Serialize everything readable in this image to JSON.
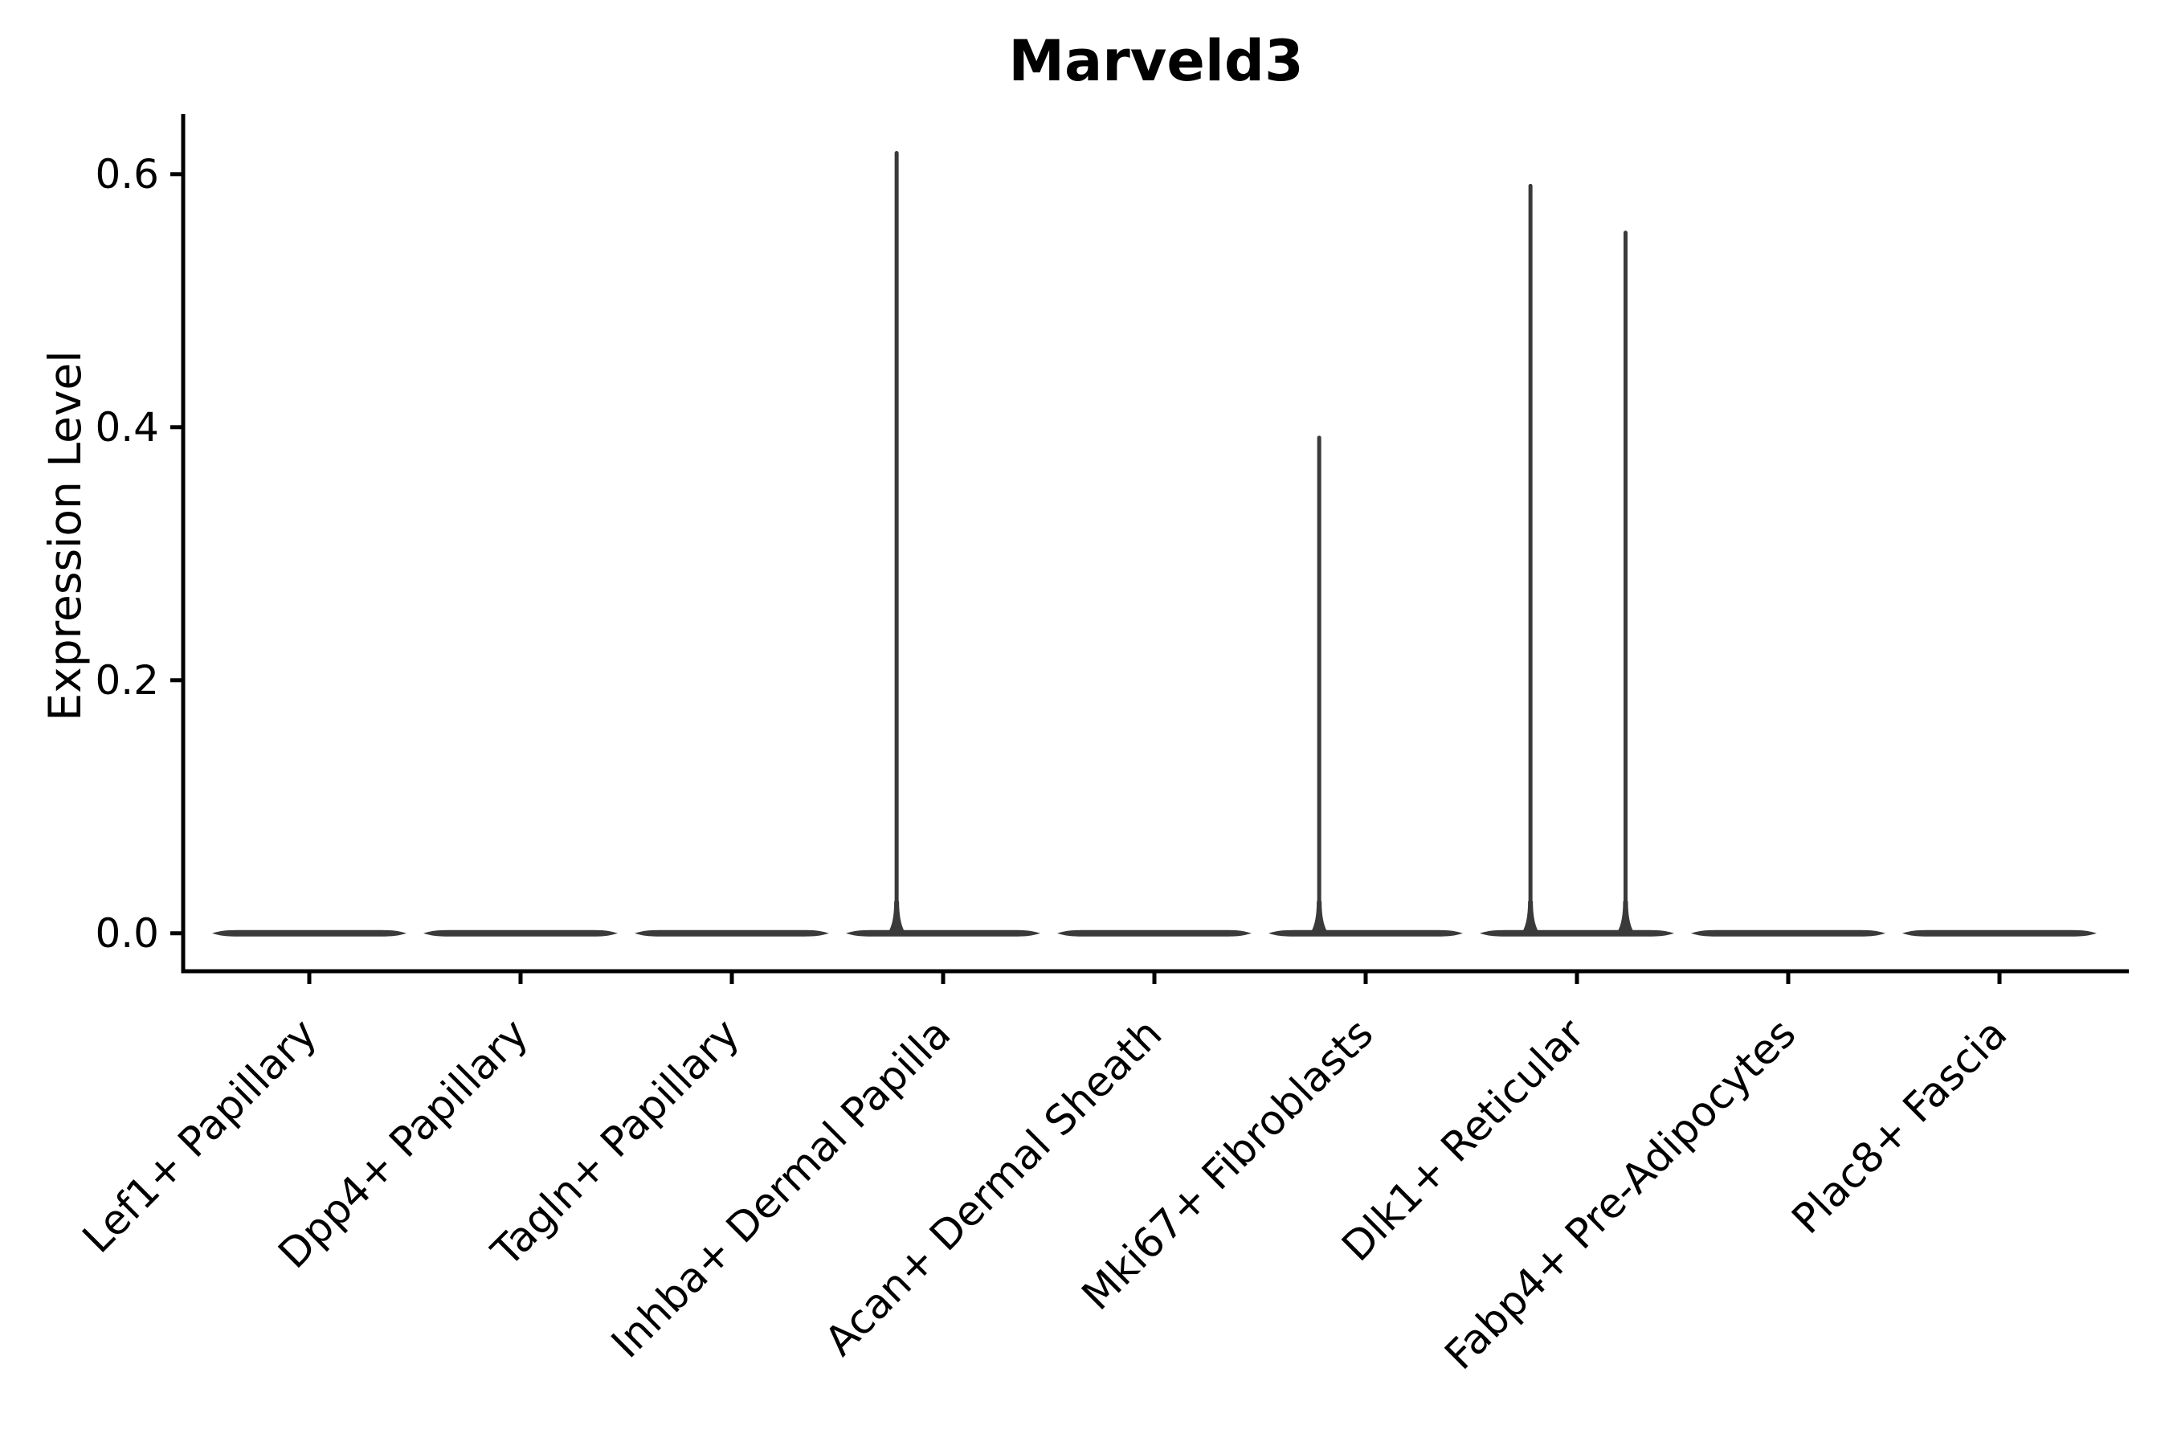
{
  "chart_data": {
    "type": "violin",
    "title": "Marveld3",
    "xlabel": "",
    "ylabel": "Expression Level",
    "categories": [
      "Lef1+ Papillary",
      "Dpp4+ Papillary",
      "Tagln+ Papillary",
      "Inhba+ Dermal Papilla",
      "Acan+ Dermal Sheath",
      "Mki67+ Fibroblasts",
      "Dlk1+ Reticular",
      "Fabp4+ Pre-Adipocytes",
      "Plac8+ Fascia"
    ],
    "yticks": [
      0.0,
      0.2,
      0.4,
      0.6
    ],
    "ytick_labels": [
      "0.0",
      "0.2",
      "0.4",
      "0.6"
    ],
    "ylim": [
      -0.03,
      0.6475
    ],
    "grid": false,
    "legend": null,
    "violins": [
      {
        "category": "Lef1+ Papillary",
        "base_value": 0.0,
        "spikes": []
      },
      {
        "category": "Dpp4+ Papillary",
        "base_value": 0.0,
        "spikes": []
      },
      {
        "category": "Tagln+ Papillary",
        "base_value": 0.0,
        "spikes": []
      },
      {
        "category": "Inhba+ Dermal Papilla",
        "base_value": 0.0,
        "spikes": [
          {
            "x_offset": -0.22,
            "value": 0.618
          }
        ]
      },
      {
        "category": "Acan+ Dermal Sheath",
        "base_value": 0.0,
        "spikes": []
      },
      {
        "category": "Mki67+ Fibroblasts",
        "base_value": 0.0,
        "spikes": [
          {
            "x_offset": -0.22,
            "value": 0.393
          }
        ]
      },
      {
        "category": "Dlk1+ Reticular",
        "base_value": 0.0,
        "spikes": [
          {
            "x_offset": -0.22,
            "value": 0.592
          },
          {
            "x_offset": 0.23,
            "value": 0.555
          }
        ]
      },
      {
        "category": "Fabp4+ Pre-Adipocytes",
        "base_value": 0.0,
        "spikes": []
      },
      {
        "category": "Plac8+ Fascia",
        "base_value": 0.0,
        "spikes": []
      }
    ],
    "colors": {
      "violin": "#3a3a3a",
      "axis": "#000000",
      "text": "#000000",
      "background": "#ffffff"
    }
  }
}
